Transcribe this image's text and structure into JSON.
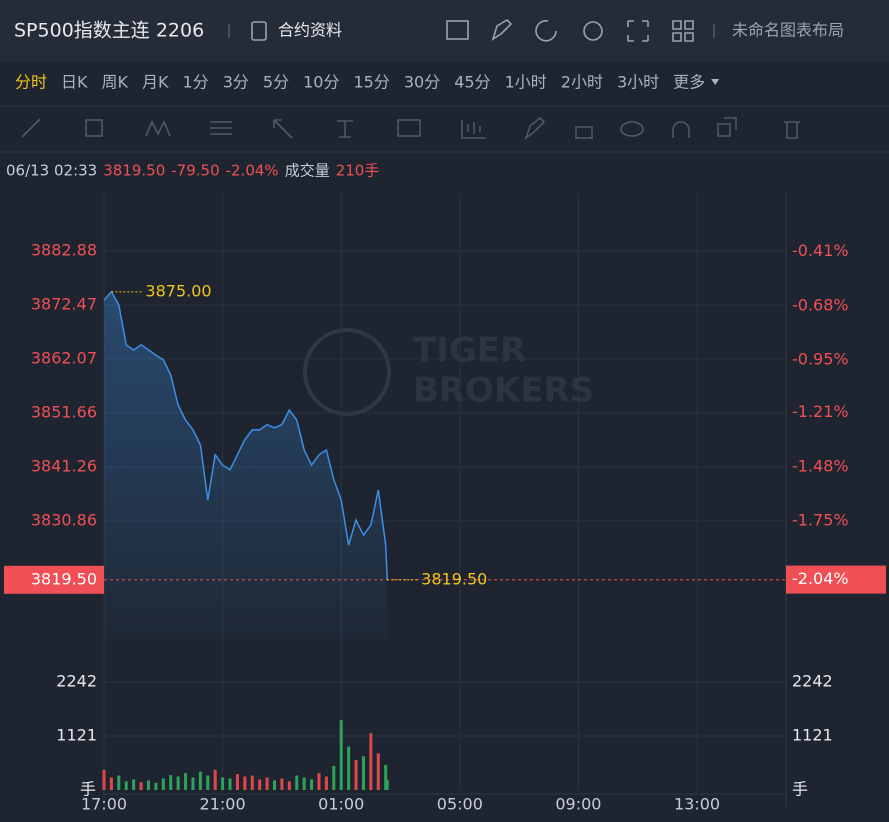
{
  "header": {
    "title": "SP500指数主连 2206",
    "contract_button": "合约资料",
    "layout_name": "未命名图表布局"
  },
  "intervals": [
    "分时",
    "日K",
    "周K",
    "月K",
    "1分",
    "3分",
    "5分",
    "10分",
    "15分",
    "30分",
    "45分",
    "1小时",
    "2小时",
    "3小时",
    "更多"
  ],
  "info": {
    "time": "06/13 02:33",
    "price": "3819.50",
    "change": "-79.50",
    "percent": "-2.04%",
    "volume_label": "成交量",
    "volume": "210手"
  },
  "chart_data": {
    "type": "line",
    "x": [
      "17:00",
      "17:15",
      "17:30",
      "17:45",
      "18:00",
      "18:15",
      "18:30",
      "18:45",
      "19:00",
      "19:15",
      "19:30",
      "19:45",
      "20:00",
      "20:15",
      "20:30",
      "20:45",
      "21:00",
      "21:15",
      "21:30",
      "21:45",
      "22:00",
      "22:15",
      "22:30",
      "22:45",
      "23:00",
      "23:15",
      "23:30",
      "23:45",
      "00:00",
      "00:15",
      "00:30",
      "00:45",
      "01:00",
      "01:15",
      "01:30",
      "01:45",
      "02:00",
      "02:15",
      "02:30",
      "02:33"
    ],
    "xlim": [
      "17:00",
      "16:00"
    ],
    "xticks": [
      "17:00",
      "21:00",
      "01:00",
      "05:00",
      "09:00",
      "13:00"
    ],
    "ylim": [
      3807.9,
      3894.05
    ],
    "yticks": [
      3830.86,
      3841.26,
      3851.66,
      3862.07,
      3872.47,
      3882.88
    ],
    "y2lim": [
      -2.34,
      -0.12
    ],
    "y2ticks": [
      {
        "value": -1.75,
        "label": "-1.75%"
      },
      {
        "value": -1.48,
        "label": "-1.48%"
      },
      {
        "value": -1.21,
        "label": "-1.21%"
      },
      {
        "value": -0.95,
        "label": "-0.95%"
      },
      {
        "value": -0.68,
        "label": "-0.68%"
      },
      {
        "value": -0.41,
        "label": "-0.41%"
      }
    ],
    "grid": true,
    "series": [
      {
        "color": "#3d8fe6",
        "values": [
          3873.4,
          3875.0,
          3872.5,
          3864.8,
          3863.8,
          3864.8,
          3863.8,
          3862.8,
          3861.9,
          3859.0,
          3853.2,
          3850.3,
          3848.4,
          3845.5,
          3834.9,
          3843.6,
          3841.6,
          3840.7,
          3843.6,
          3846.5,
          3848.4,
          3848.4,
          3849.4,
          3848.8,
          3849.4,
          3852.2,
          3850.3,
          3844.5,
          3841.6,
          3843.6,
          3844.5,
          3838.8,
          3834.9,
          3826.2,
          3831.0,
          3828.1,
          3830.1,
          3836.8,
          3826.2,
          3819.5
        ]
      }
    ],
    "annotations": [
      {
        "x": "17:15",
        "value": 3875.0,
        "label": "3875.00"
      },
      {
        "x": "02:33",
        "value": 3819.5,
        "label": "3819.50"
      }
    ],
    "last_price": {
      "value": 3819.5,
      "label": "3819.50"
    },
    "last_pct": {
      "value": -2.04,
      "label": "-2.04%"
    },
    "volume": {
      "values": [
        420,
        260,
        300,
        180,
        220,
        160,
        200,
        150,
        240,
        310,
        280,
        350,
        260,
        380,
        300,
        420,
        260,
        240,
        330,
        280,
        300,
        220,
        260,
        200,
        240,
        180,
        300,
        260,
        220,
        350,
        280,
        500,
        1450,
        900,
        620,
        700,
        1180,
        760,
        520,
        210
      ],
      "ylim": [
        0,
        2906
      ],
      "yticks": [
        1121,
        2242
      ],
      "unit": "手",
      "up_color": "#e0474c",
      "down_color": "#2fa35a"
    },
    "watermark": [
      "TIGER",
      "BROKERS"
    ]
  }
}
